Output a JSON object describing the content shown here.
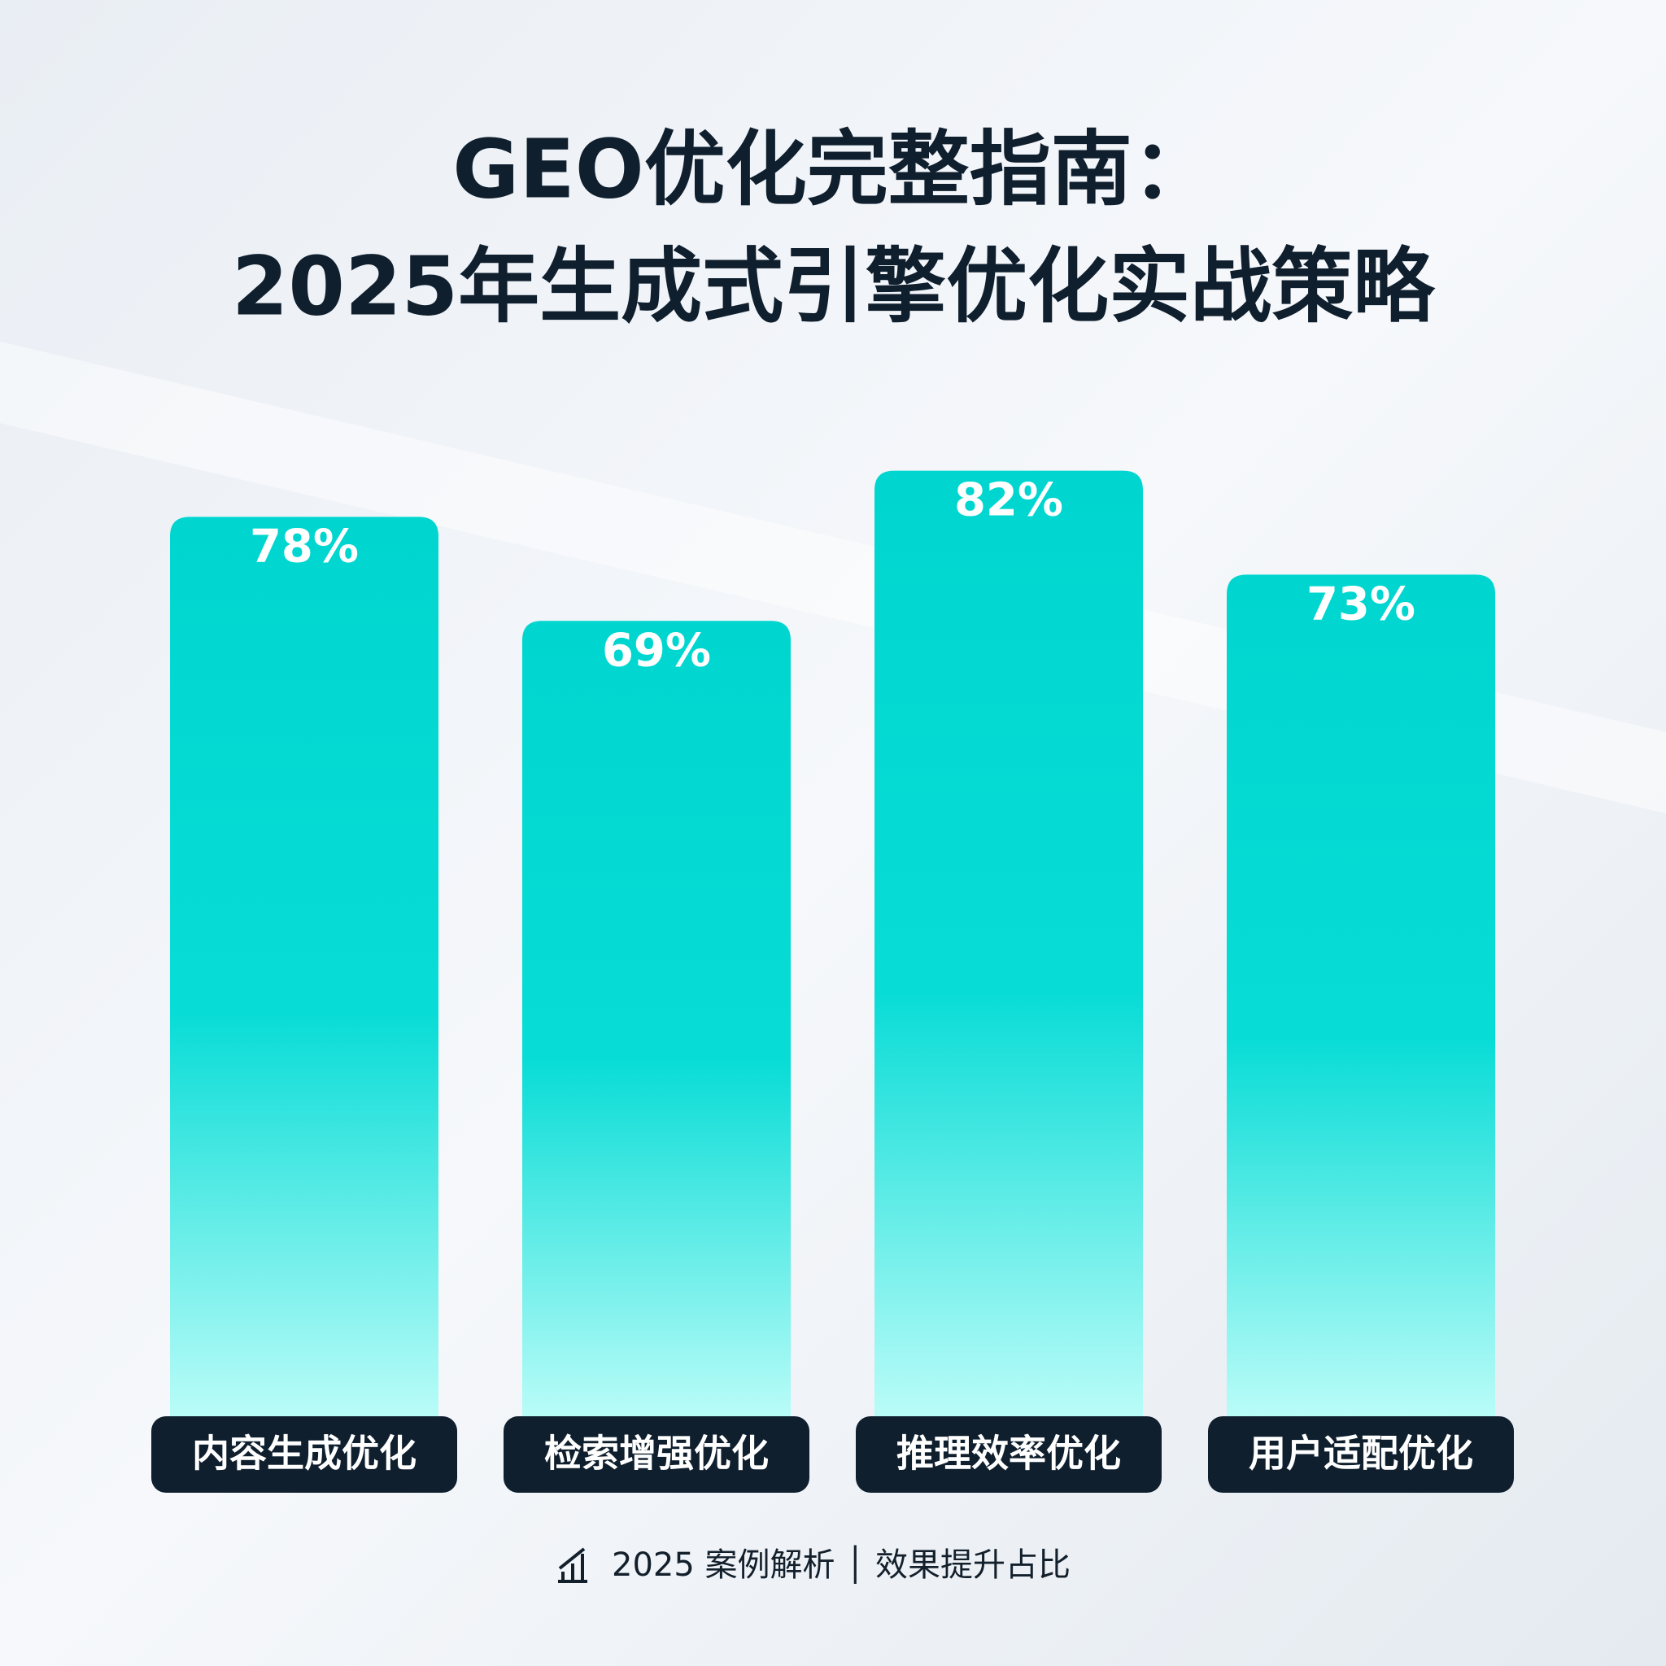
{
  "chart_data": {
    "type": "bar",
    "title": "GEO优化完整指南：",
    "subtitle": "2025年生成式引擎优化实战策略",
    "categories": [
      "内容生成优化",
      "检索增强优化",
      "推理效率优化",
      "用户适配优化"
    ],
    "values": [
      78,
      69,
      82,
      73
    ],
    "value_labels": [
      "78%",
      "69%",
      "82%",
      "73%"
    ],
    "ylim": [
      0,
      100
    ],
    "footer": "2025 案例解析 │ 效果提升占比"
  }
}
